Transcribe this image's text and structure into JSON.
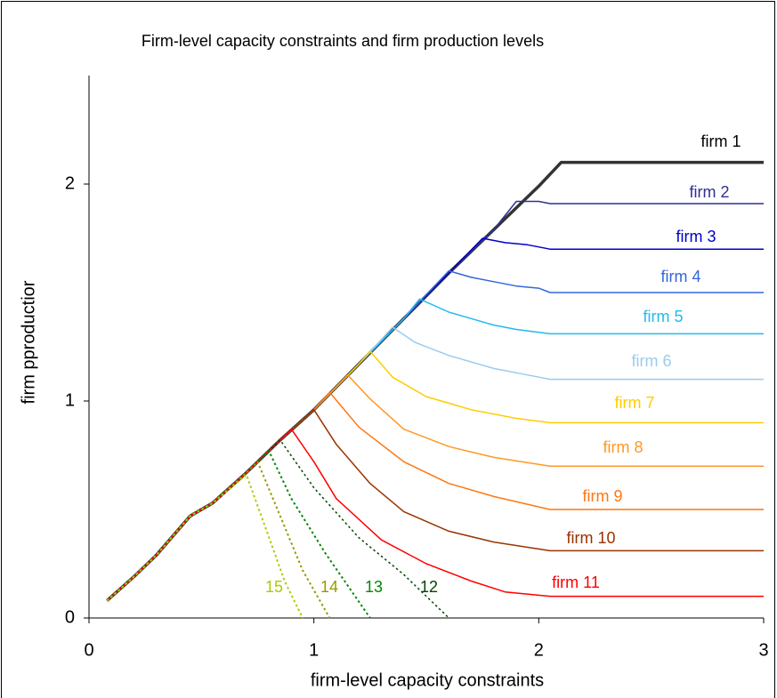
{
  "chart_data": {
    "type": "line",
    "title": "Firm-level capacity constraints and firm production levels",
    "xlabel": "firm-level capacity constraints",
    "ylabel": "firm pproductior",
    "xlim": [
      0,
      3
    ],
    "xticks": [
      0,
      1,
      2,
      3
    ],
    "ylim": [
      0,
      2.5
    ],
    "yticks": [
      0,
      1,
      2
    ],
    "grid": false,
    "series": [
      {
        "name": "firm 1",
        "color": "#333333",
        "width": 3.5,
        "style": "solid",
        "x": [
          0.08,
          0.2,
          0.3,
          0.45,
          0.55,
          0.7,
          0.85,
          1.0,
          1.2,
          1.4,
          1.6,
          1.8,
          2.0,
          2.1,
          2.3,
          2.6,
          3.0
        ],
        "values": [
          0.08,
          0.19,
          0.29,
          0.47,
          0.53,
          0.67,
          0.82,
          0.96,
          1.17,
          1.38,
          1.59,
          1.79,
          1.99,
          2.1,
          2.1,
          2.1,
          2.1
        ]
      },
      {
        "name": "firm 2",
        "color": "#2e3192",
        "width": 1.5,
        "style": "solid",
        "x": [
          0.08,
          0.2,
          0.3,
          0.45,
          0.55,
          0.7,
          0.85,
          1.0,
          1.2,
          1.4,
          1.6,
          1.8,
          1.9,
          2.0,
          2.05,
          3.0
        ],
        "values": [
          0.08,
          0.19,
          0.29,
          0.47,
          0.53,
          0.67,
          0.82,
          0.96,
          1.17,
          1.38,
          1.59,
          1.79,
          1.92,
          1.92,
          1.91,
          1.91
        ]
      },
      {
        "name": "firm 3",
        "color": "#0000cc",
        "width": 1.5,
        "style": "solid",
        "x": [
          0.08,
          0.2,
          0.3,
          0.45,
          0.55,
          0.7,
          0.85,
          1.0,
          1.2,
          1.4,
          1.6,
          1.75,
          1.85,
          1.95,
          2.05,
          3.0
        ],
        "values": [
          0.08,
          0.19,
          0.29,
          0.47,
          0.53,
          0.67,
          0.82,
          0.96,
          1.17,
          1.38,
          1.59,
          1.75,
          1.73,
          1.72,
          1.7,
          1.7
        ]
      },
      {
        "name": "firm 4",
        "color": "#3366dd",
        "width": 1.5,
        "style": "solid",
        "x": [
          0.08,
          0.2,
          0.3,
          0.45,
          0.55,
          0.7,
          0.85,
          1.0,
          1.2,
          1.4,
          1.6,
          1.7,
          1.8,
          1.9,
          2.0,
          2.05,
          3.0
        ],
        "values": [
          0.08,
          0.19,
          0.29,
          0.47,
          0.53,
          0.67,
          0.82,
          0.96,
          1.17,
          1.38,
          1.6,
          1.57,
          1.55,
          1.53,
          1.52,
          1.5,
          1.5
        ]
      },
      {
        "name": "firm 5",
        "color": "#22bbee",
        "width": 1.5,
        "style": "solid",
        "x": [
          0.08,
          0.2,
          0.3,
          0.45,
          0.55,
          0.7,
          0.85,
          1.0,
          1.2,
          1.4,
          1.47,
          1.6,
          1.7,
          1.8,
          1.9,
          2.05,
          3.0
        ],
        "values": [
          0.08,
          0.19,
          0.29,
          0.47,
          0.53,
          0.67,
          0.82,
          0.96,
          1.17,
          1.38,
          1.47,
          1.41,
          1.38,
          1.35,
          1.33,
          1.31,
          1.31
        ]
      },
      {
        "name": "firm 6",
        "color": "#99ccf0",
        "width": 1.5,
        "style": "solid",
        "x": [
          0.08,
          0.2,
          0.3,
          0.45,
          0.55,
          0.7,
          0.85,
          1.0,
          1.2,
          1.35,
          1.45,
          1.6,
          1.8,
          1.95,
          2.05,
          3.0
        ],
        "values": [
          0.08,
          0.19,
          0.29,
          0.47,
          0.53,
          0.67,
          0.82,
          0.96,
          1.17,
          1.34,
          1.27,
          1.21,
          1.15,
          1.12,
          1.1,
          1.1
        ]
      },
      {
        "name": "firm 7",
        "color": "#ffcc00",
        "width": 1.5,
        "style": "solid",
        "x": [
          0.08,
          0.2,
          0.3,
          0.45,
          0.55,
          0.7,
          0.85,
          1.0,
          1.2,
          1.25,
          1.35,
          1.5,
          1.7,
          1.9,
          2.05,
          3.0
        ],
        "values": [
          0.08,
          0.19,
          0.29,
          0.47,
          0.53,
          0.67,
          0.82,
          0.96,
          1.17,
          1.23,
          1.11,
          1.02,
          0.96,
          0.92,
          0.9,
          0.9
        ]
      },
      {
        "name": "firm 8",
        "color": "#ff9922",
        "width": 1.5,
        "style": "solid",
        "x": [
          0.08,
          0.2,
          0.3,
          0.45,
          0.55,
          0.7,
          0.85,
          1.0,
          1.15,
          1.25,
          1.4,
          1.6,
          1.8,
          2.05,
          3.0
        ],
        "values": [
          0.08,
          0.19,
          0.29,
          0.47,
          0.53,
          0.67,
          0.82,
          0.96,
          1.12,
          1.01,
          0.87,
          0.79,
          0.74,
          0.7,
          0.7
        ]
      },
      {
        "name": "firm 9",
        "color": "#ff7711",
        "width": 1.5,
        "style": "solid",
        "x": [
          0.08,
          0.2,
          0.3,
          0.45,
          0.55,
          0.7,
          0.85,
          1.0,
          1.07,
          1.2,
          1.4,
          1.6,
          1.8,
          2.05,
          3.0
        ],
        "values": [
          0.08,
          0.19,
          0.29,
          0.47,
          0.53,
          0.67,
          0.82,
          0.96,
          1.04,
          0.88,
          0.72,
          0.62,
          0.56,
          0.5,
          0.5
        ]
      },
      {
        "name": "firm 10",
        "color": "#993300",
        "width": 1.5,
        "style": "solid",
        "x": [
          0.08,
          0.2,
          0.3,
          0.45,
          0.55,
          0.7,
          0.85,
          1.0,
          1.1,
          1.25,
          1.4,
          1.6,
          1.8,
          2.05,
          3.0
        ],
        "values": [
          0.08,
          0.19,
          0.29,
          0.47,
          0.53,
          0.67,
          0.82,
          0.96,
          0.8,
          0.62,
          0.49,
          0.4,
          0.35,
          0.31,
          0.31
        ]
      },
      {
        "name": "firm 11",
        "color": "#ff0000",
        "width": 1.5,
        "style": "solid",
        "x": [
          0.08,
          0.2,
          0.3,
          0.45,
          0.55,
          0.7,
          0.85,
          0.9,
          1.0,
          1.1,
          1.3,
          1.5,
          1.7,
          1.85,
          2.05,
          3.0
        ],
        "values": [
          0.08,
          0.19,
          0.29,
          0.47,
          0.53,
          0.67,
          0.82,
          0.87,
          0.72,
          0.55,
          0.36,
          0.25,
          0.17,
          0.12,
          0.1,
          0.1
        ]
      },
      {
        "name": "12",
        "color": "#004400",
        "width": 1.5,
        "style": "dotted",
        "x": [
          0.08,
          0.2,
          0.3,
          0.45,
          0.55,
          0.7,
          0.85,
          1.0,
          1.2,
          1.4,
          1.6
        ],
        "values": [
          0.08,
          0.19,
          0.29,
          0.47,
          0.53,
          0.67,
          0.82,
          0.6,
          0.37,
          0.2,
          0
        ]
      },
      {
        "name": "13",
        "color": "#008800",
        "width": 2,
        "style": "dotted",
        "x": [
          0.08,
          0.2,
          0.3,
          0.45,
          0.55,
          0.7,
          0.8,
          0.9,
          1.05,
          1.25
        ],
        "values": [
          0.08,
          0.19,
          0.29,
          0.47,
          0.53,
          0.67,
          0.77,
          0.55,
          0.3,
          0
        ]
      },
      {
        "name": "14",
        "color": "#999900",
        "width": 2,
        "style": "dotted",
        "x": [
          0.08,
          0.2,
          0.3,
          0.45,
          0.55,
          0.7,
          0.75,
          0.85,
          0.95,
          1.07
        ],
        "values": [
          0.08,
          0.19,
          0.29,
          0.47,
          0.53,
          0.67,
          0.72,
          0.47,
          0.22,
          0
        ]
      },
      {
        "name": "15",
        "color": "#aacc00",
        "width": 2,
        "style": "dotted",
        "x": [
          0.08,
          0.2,
          0.3,
          0.45,
          0.55,
          0.7,
          0.78,
          0.87,
          0.95
        ],
        "values": [
          0.08,
          0.19,
          0.29,
          0.47,
          0.53,
          0.66,
          0.43,
          0.17,
          0
        ]
      }
    ]
  }
}
